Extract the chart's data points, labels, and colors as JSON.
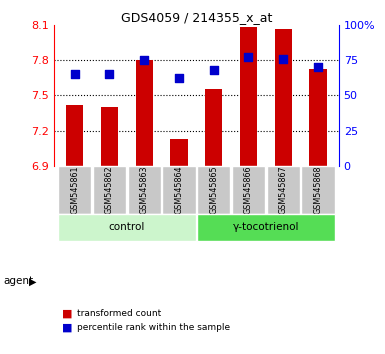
{
  "title": "GDS4059 / 214355_x_at",
  "samples": [
    "GSM545861",
    "GSM545862",
    "GSM545863",
    "GSM545864",
    "GSM545865",
    "GSM545866",
    "GSM545867",
    "GSM545868"
  ],
  "red_values": [
    7.42,
    7.4,
    7.8,
    7.13,
    7.55,
    8.08,
    8.06,
    7.72
  ],
  "blue_values": [
    65,
    65,
    75,
    62,
    68,
    77,
    76,
    70
  ],
  "ylim_left": [
    6.9,
    8.1
  ],
  "ylim_right": [
    0,
    100
  ],
  "yticks_left": [
    6.9,
    7.2,
    7.5,
    7.8,
    8.1
  ],
  "yticks_right": [
    0,
    25,
    50,
    75,
    100
  ],
  "ytick_labels_right": [
    "0",
    "25",
    "50",
    "75",
    "100%"
  ],
  "gridline_ticks": [
    7.2,
    7.5,
    7.8
  ],
  "groups": [
    {
      "label": "control",
      "indices": [
        0,
        1,
        2,
        3
      ],
      "color": "#ccf5cc"
    },
    {
      "label": "γ-tocotrienol",
      "indices": [
        4,
        5,
        6,
        7
      ],
      "color": "#55dd55"
    }
  ],
  "agent_label": "agent",
  "bar_color": "#cc0000",
  "dot_color": "#0000cc",
  "tick_bg_color": "#c8c8c8",
  "bar_width": 0.5,
  "dot_size": 30,
  "legend": [
    {
      "color": "#cc0000",
      "label": "transformed count"
    },
    {
      "color": "#0000cc",
      "label": "percentile rank within the sample"
    }
  ]
}
